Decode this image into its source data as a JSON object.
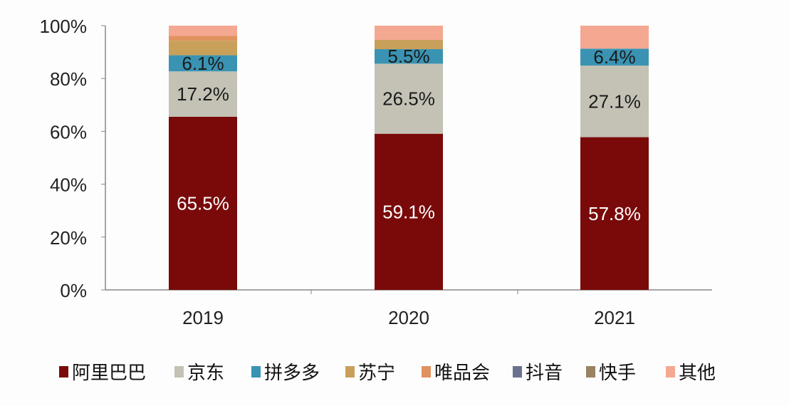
{
  "chart_data": {
    "type": "bar",
    "stacked": true,
    "categories": [
      "2019",
      "2020",
      "2021"
    ],
    "ylim": [
      0,
      100
    ],
    "yticks": [
      "0%",
      "20%",
      "40%",
      "60%",
      "80%",
      "100%"
    ],
    "grid": false,
    "legend_placement": "bottom",
    "series": [
      {
        "name": "阿里巴巴",
        "color": "#7a0a0a",
        "values": [
          65.5,
          59.1,
          57.8
        ],
        "labels": [
          "65.5%",
          "59.1%",
          "57.8%"
        ],
        "label_color": "#ffffff"
      },
      {
        "name": "京东",
        "color": "#c4c2b5",
        "values": [
          17.2,
          26.5,
          27.1
        ],
        "labels": [
          "17.2%",
          "26.5%",
          "27.1%"
        ],
        "label_color": "#1a1a1a"
      },
      {
        "name": "拼多多",
        "color": "#3a93b3",
        "values": [
          6.1,
          5.5,
          6.4
        ],
        "labels": [
          "6.1%",
          "5.5%",
          "6.4%"
        ],
        "label_color": "#1a1a1a"
      },
      {
        "name": "苏宁",
        "color": "#c9a05a",
        "values": [
          5.5,
          3.5,
          0
        ]
      },
      {
        "name": "唯品会",
        "color": "#e0925f",
        "values": [
          1.9,
          0,
          0
        ]
      },
      {
        "name": "抖音",
        "color": "#6a7290",
        "values": [
          0,
          0,
          0
        ]
      },
      {
        "name": "快手",
        "color": "#9a8262",
        "values": [
          0,
          0,
          0
        ]
      },
      {
        "name": "其他",
        "color": "#f4a891",
        "values": [
          3.8,
          5.4,
          8.7
        ]
      }
    ]
  }
}
